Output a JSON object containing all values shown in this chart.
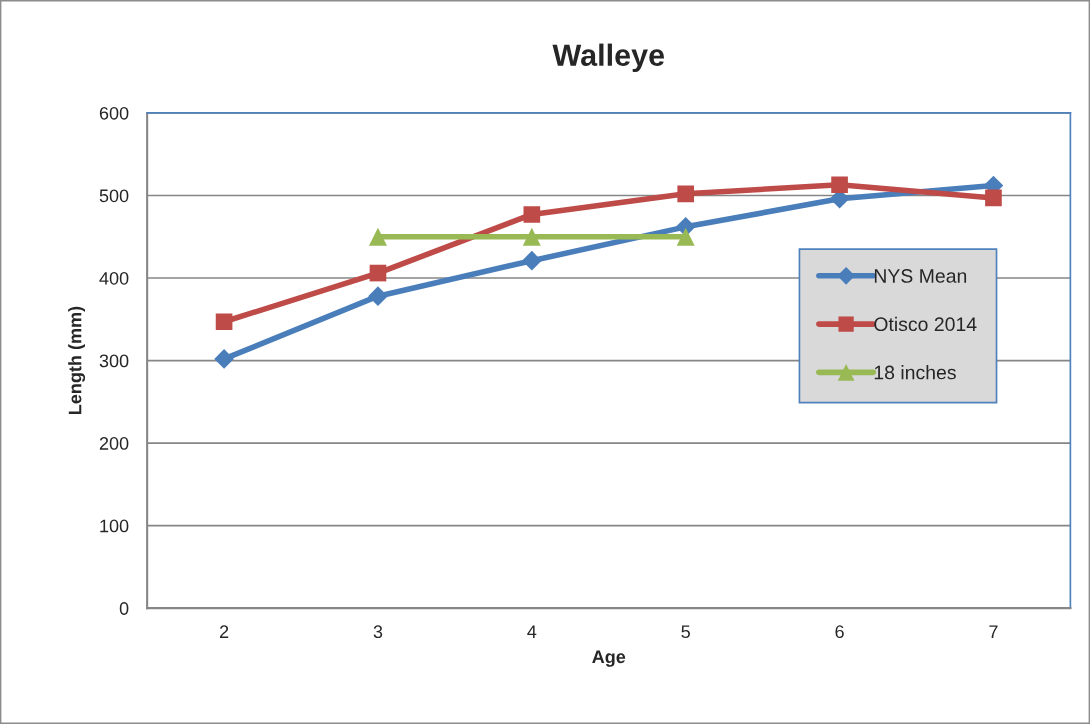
{
  "chart_data": {
    "type": "line",
    "title": "Walleye",
    "xlabel": "Age",
    "ylabel": "Length (mm)",
    "categories": [
      "2",
      "3",
      "4",
      "5",
      "6",
      "7"
    ],
    "series": [
      {
        "name": "NYS Mean",
        "color": "#4a7ebb",
        "marker": "diamond",
        "values": [
          302,
          378,
          421,
          462,
          496,
          512
        ]
      },
      {
        "name": "Otisco 2014",
        "color": "#be4b48",
        "marker": "square",
        "values": [
          347,
          406,
          477,
          502,
          513,
          497
        ]
      },
      {
        "name": "18 inches",
        "color": "#98b954",
        "marker": "triangle",
        "values": [
          null,
          450,
          450,
          450,
          null,
          null
        ]
      }
    ],
    "ylim": [
      0,
      600
    ],
    "yticks": [
      0,
      100,
      200,
      300,
      400,
      500,
      600
    ],
    "grid": "y",
    "legend": "right",
    "line_style": "solid"
  }
}
